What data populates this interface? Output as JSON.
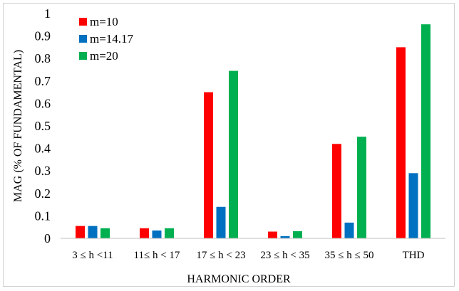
{
  "chart_data": {
    "type": "bar",
    "title": "",
    "xlabel": "HARMONIC ORDER",
    "ylabel": "MAG (% OF FUNDAMENTAL)",
    "ylim": [
      0,
      1
    ],
    "yticks": [
      "0",
      "0.1",
      "0.2",
      "0.3",
      "0.4",
      "0.5",
      "0.6",
      "0.7",
      "0.8",
      "0.9",
      "1"
    ],
    "grid": false,
    "legend_position": "top-left",
    "categories": [
      "3 ≤ h <11",
      "11≤ h < 17",
      "17 ≤ h < 23",
      "23 ≤ h < 35",
      "35 ≤ h ≤ 50",
      "THD"
    ],
    "series": [
      {
        "name": "m=10",
        "color": "#ff0000",
        "values": [
          0.055,
          0.045,
          0.65,
          0.03,
          0.42,
          0.85
        ]
      },
      {
        "name": "m=14.17",
        "color": "#0070c0",
        "values": [
          0.055,
          0.035,
          0.14,
          0.01,
          0.07,
          0.29
        ]
      },
      {
        "name": "m=20",
        "color": "#00b050",
        "values": [
          0.045,
          0.045,
          0.745,
          0.032,
          0.452,
          0.952
        ]
      }
    ]
  }
}
